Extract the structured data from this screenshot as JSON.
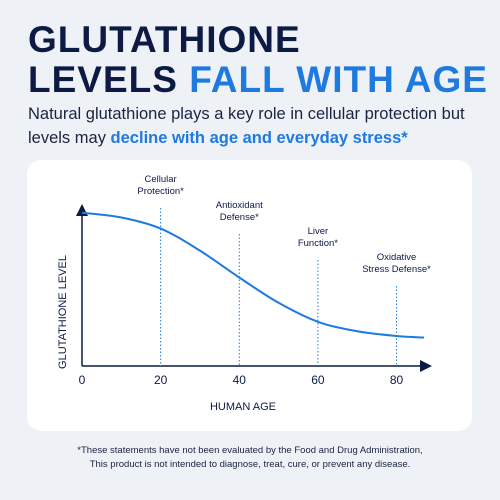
{
  "header": {
    "title_line1": "GLUTATHIONE",
    "title_line2": "LEVELS",
    "title_highlight": "FALL WITH AGE",
    "subtitle": "Natural glutathione plays a key role in cellular protection but levels may",
    "subtitle_highlight": "decline with age and everyday stress*"
  },
  "chart_data": {
    "type": "line",
    "x_label": "HUMAN AGE",
    "y_label": "GLUTATHIONE LEVEL",
    "x": [
      0,
      10,
      20,
      30,
      40,
      50,
      60,
      70,
      80,
      87
    ],
    "series": [
      {
        "name": "Glutathione level",
        "color": "#1f7ae0",
        "values": [
          97,
          94,
          87,
          73,
          56,
          40,
          28,
          22,
          19,
          18
        ]
      }
    ],
    "xlim": [
      0,
      88
    ],
    "xticks": [
      0,
      20,
      40,
      60,
      80
    ],
    "ylim": [
      0,
      100
    ],
    "annotations": [
      {
        "x": 20,
        "lines": [
          "Cellular",
          "Protection*"
        ]
      },
      {
        "x": 40,
        "lines": [
          "Antioxidant",
          "Defense*"
        ]
      },
      {
        "x": 60,
        "lines": [
          "Liver",
          "Function*"
        ]
      },
      {
        "x": 80,
        "lines": [
          "Oxidative",
          "Stress Defense*"
        ]
      }
    ]
  },
  "footnote": [
    "*These statements have not been evaluated by the Food and Drug Administration,",
    "This product is not intended to diagnose, treat, cure, or prevent any disease."
  ]
}
